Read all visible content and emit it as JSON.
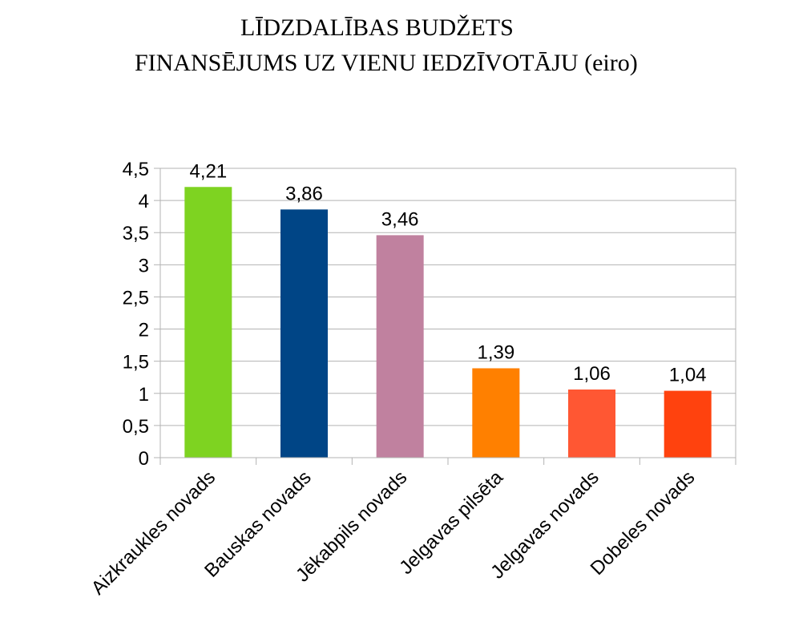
{
  "chart_data": {
    "type": "bar",
    "title_lines": [
      "LĪDZDALĪBAS BUDŽETS",
      "FINANSĒJUMS UZ VIENU IEDZĪVOTĀJU (eiro)"
    ],
    "xlabel": "",
    "ylabel": "",
    "categories": [
      "Aizkraukles novads",
      "Bauskas novads",
      "Jēkabpils novads",
      "Jelgavas pilsēta",
      "Jelgavas novads",
      "Dobeles novads"
    ],
    "values": [
      4.21,
      3.86,
      3.46,
      1.39,
      1.06,
      1.04
    ],
    "value_labels": [
      "4,21",
      "3,86",
      "3,46",
      "1,39",
      "1,06",
      "1,04"
    ],
    "bar_colors": [
      "#7ED321",
      "#004586",
      "#C0819F",
      "#FF8000",
      "#FF5733",
      "#FF420E"
    ],
    "ylim": [
      0,
      4.5
    ],
    "yticks": [
      0,
      0.5,
      1,
      1.5,
      2,
      2.5,
      3,
      3.5,
      4,
      4.5
    ],
    "ytick_labels": [
      "0",
      "0,5",
      "1",
      "1,5",
      "2",
      "2,5",
      "3",
      "3,5",
      "4",
      "4,5"
    ],
    "grid": true,
    "legend": "none"
  }
}
